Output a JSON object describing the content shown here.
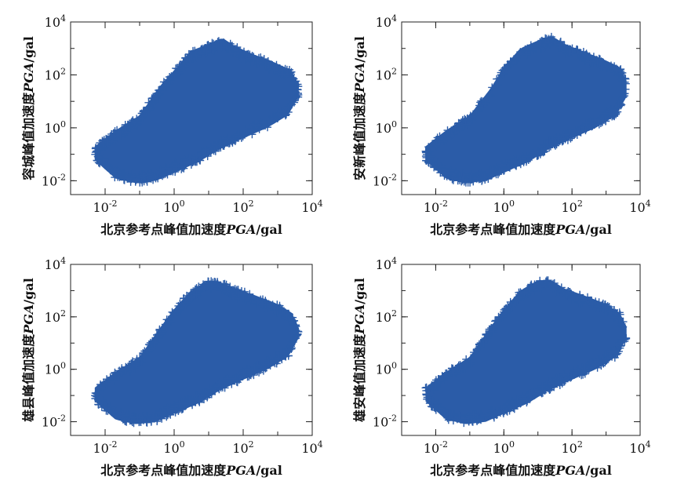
{
  "chart_data": [
    {
      "type": "scatter",
      "panel": "top-left",
      "xlabel": "北京参考点峰值加速度PGA/gal",
      "ylabel": "容城峰值加速度PGA/gal",
      "xscale": "log",
      "yscale": "log",
      "xlim": [
        0.001,
        10000
      ],
      "ylim": [
        0.003,
        10000
      ],
      "xticks": [
        "10^-2",
        "10^0",
        "10^2",
        "10^4"
      ],
      "yticks": [
        "10^-2",
        "10^0",
        "10^2",
        "10^4"
      ],
      "marker": "+",
      "color": "#2b5ca8",
      "envelope_upper": [
        [
          0.005,
          0.2
        ],
        [
          0.02,
          0.8
        ],
        [
          0.1,
          3
        ],
        [
          0.4,
          40
        ],
        [
          1,
          150
        ],
        [
          3,
          800
        ],
        [
          10,
          1500
        ],
        [
          25,
          2500
        ],
        [
          60,
          1200
        ],
        [
          200,
          600
        ],
        [
          800,
          300
        ],
        [
          2500,
          150
        ],
        [
          4000,
          40
        ]
      ],
      "envelope_lower": [
        [
          0.005,
          0.06
        ],
        [
          0.02,
          0.012
        ],
        [
          0.08,
          0.008
        ],
        [
          0.3,
          0.01
        ],
        [
          1,
          0.02
        ],
        [
          5,
          0.05
        ],
        [
          20,
          0.15
        ],
        [
          100,
          0.4
        ],
        [
          500,
          1
        ],
        [
          2000,
          3
        ],
        [
          4000,
          15
        ]
      ]
    },
    {
      "type": "scatter",
      "panel": "top-right",
      "xlabel": "北京参考点峰值加速度PGA/gal",
      "ylabel": "安新峰值加速度PGA/gal",
      "xscale": "log",
      "yscale": "log",
      "xlim": [
        0.001,
        10000
      ],
      "ylim": [
        0.003,
        10000
      ],
      "xticks": [
        "10^-2",
        "10^0",
        "10^2",
        "10^4"
      ],
      "yticks": [
        "10^-2",
        "10^0",
        "10^2",
        "10^4"
      ],
      "marker": "+",
      "color": "#2b5ca8",
      "envelope_upper": [
        [
          0.005,
          0.2
        ],
        [
          0.02,
          0.8
        ],
        [
          0.1,
          3
        ],
        [
          0.4,
          30
        ],
        [
          1,
          200
        ],
        [
          3,
          1000
        ],
        [
          10,
          2000
        ],
        [
          25,
          3000
        ],
        [
          60,
          1500
        ],
        [
          200,
          800
        ],
        [
          800,
          400
        ],
        [
          2500,
          200
        ],
        [
          4000,
          60
        ]
      ],
      "envelope_lower": [
        [
          0.005,
          0.06
        ],
        [
          0.02,
          0.012
        ],
        [
          0.08,
          0.008
        ],
        [
          0.3,
          0.01
        ],
        [
          1,
          0.02
        ],
        [
          5,
          0.05
        ],
        [
          20,
          0.15
        ],
        [
          100,
          0.4
        ],
        [
          500,
          1
        ],
        [
          2000,
          3
        ],
        [
          4000,
          15
        ]
      ]
    },
    {
      "type": "scatter",
      "panel": "bottom-left",
      "xlabel": "北京参考点峰值加速度PGA/gal",
      "ylabel": "雄县峰值加速度PGA/gal",
      "xscale": "log",
      "yscale": "log",
      "xlim": [
        0.001,
        10000
      ],
      "ylim": [
        0.003,
        10000
      ],
      "xticks": [
        "10^-2",
        "10^0",
        "10^2",
        "10^4"
      ],
      "yticks": [
        "10^-2",
        "10^0",
        "10^2",
        "10^4"
      ],
      "marker": "+",
      "color": "#2b5ca8",
      "envelope_upper": [
        [
          0.005,
          0.2
        ],
        [
          0.02,
          0.8
        ],
        [
          0.1,
          3
        ],
        [
          0.4,
          40
        ],
        [
          1,
          200
        ],
        [
          3,
          1000
        ],
        [
          10,
          2500
        ],
        [
          25,
          2000
        ],
        [
          60,
          1200
        ],
        [
          200,
          700
        ],
        [
          800,
          350
        ],
        [
          2500,
          150
        ],
        [
          4000,
          40
        ]
      ],
      "envelope_lower": [
        [
          0.005,
          0.06
        ],
        [
          0.02,
          0.012
        ],
        [
          0.08,
          0.008
        ],
        [
          0.3,
          0.01
        ],
        [
          1,
          0.02
        ],
        [
          5,
          0.05
        ],
        [
          20,
          0.15
        ],
        [
          100,
          0.4
        ],
        [
          500,
          1
        ],
        [
          2000,
          3
        ],
        [
          4000,
          15
        ]
      ]
    },
    {
      "type": "scatter",
      "panel": "bottom-right",
      "xlabel": "北京参考点峰值加速度PGA/gal",
      "ylabel": "雄安峰值加速度PGA/gal",
      "xscale": "log",
      "yscale": "log",
      "xlim": [
        0.001,
        10000
      ],
      "ylim": [
        0.003,
        10000
      ],
      "xticks": [
        "10^-2",
        "10^0",
        "10^2",
        "10^4"
      ],
      "yticks": [
        "10^-2",
        "10^0",
        "10^2",
        "10^4"
      ],
      "marker": "+",
      "color": "#2b5ca8",
      "envelope_upper": [
        [
          0.005,
          0.2
        ],
        [
          0.02,
          0.8
        ],
        [
          0.1,
          3
        ],
        [
          0.4,
          40
        ],
        [
          1,
          200
        ],
        [
          3,
          1000
        ],
        [
          10,
          2500
        ],
        [
          25,
          2500
        ],
        [
          60,
          1200
        ],
        [
          200,
          700
        ],
        [
          800,
          350
        ],
        [
          2500,
          150
        ],
        [
          4000,
          40
        ]
      ],
      "envelope_lower": [
        [
          0.005,
          0.06
        ],
        [
          0.02,
          0.012
        ],
        [
          0.08,
          0.008
        ],
        [
          0.3,
          0.01
        ],
        [
          1,
          0.02
        ],
        [
          5,
          0.05
        ],
        [
          20,
          0.15
        ],
        [
          100,
          0.4
        ],
        [
          500,
          1
        ],
        [
          2000,
          3
        ],
        [
          4000,
          15
        ]
      ]
    }
  ]
}
